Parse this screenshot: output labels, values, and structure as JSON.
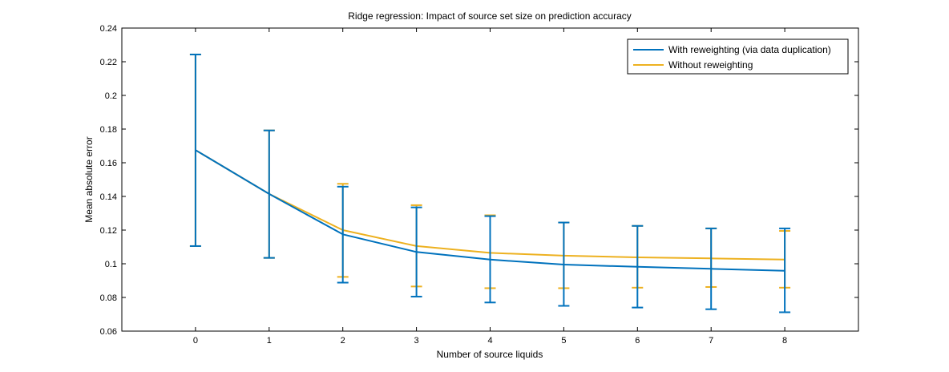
{
  "colors": {
    "series_1": "#0072BD",
    "series_2": "#EDB120",
    "axes": "#000000",
    "background": "#ffffff"
  },
  "chart_data": {
    "type": "line",
    "title": "Ridge regression: Impact of source set size on prediction accuracy",
    "xlabel": "Number of source liquids",
    "ylabel": "Mean absolute error",
    "x": [
      0,
      1,
      2,
      3,
      4,
      5,
      6,
      7,
      8
    ],
    "xlim": [
      -1,
      9
    ],
    "ylim": [
      0.06,
      0.24
    ],
    "x_ticks": [
      0,
      1,
      2,
      3,
      4,
      5,
      6,
      7,
      8
    ],
    "y_ticks": [
      0.06,
      0.08,
      0.1,
      0.12,
      0.14,
      0.16,
      0.18,
      0.2,
      0.22,
      0.24
    ],
    "y_tick_labels": [
      "0.06",
      "0.08",
      "0.1",
      "0.12",
      "0.14",
      "0.16",
      "0.18",
      "0.2",
      "0.22",
      "0.24"
    ],
    "grid": false,
    "legend_position": "top-right",
    "series": [
      {
        "name": "With reweighting (via data duplication)",
        "color": "#0072BD",
        "values": [
          0.1675,
          0.1415,
          0.1175,
          0.107,
          0.1025,
          0.0995,
          0.0982,
          0.097,
          0.0958
        ],
        "err_low": [
          0.1105,
          0.1035,
          0.0888,
          0.0805,
          0.077,
          0.075,
          0.074,
          0.073,
          0.0712
        ],
        "err_high": [
          0.2243,
          0.1792,
          0.1458,
          0.1335,
          0.1283,
          0.1245,
          0.1225,
          0.121,
          0.121
        ]
      },
      {
        "name": "Without reweighting",
        "color": "#EDB120",
        "values": [
          0.1675,
          0.1415,
          0.12,
          0.1105,
          0.1065,
          0.1048,
          0.1038,
          0.1032,
          0.1025
        ],
        "err_low": [
          0.1105,
          0.1035,
          0.0922,
          0.0865,
          0.0855,
          0.0855,
          0.0858,
          0.0862,
          0.0858
        ],
        "err_high": [
          0.2243,
          0.1792,
          0.1475,
          0.1348,
          0.1288,
          0.1245,
          0.1225,
          0.121,
          0.1195
        ]
      }
    ]
  }
}
